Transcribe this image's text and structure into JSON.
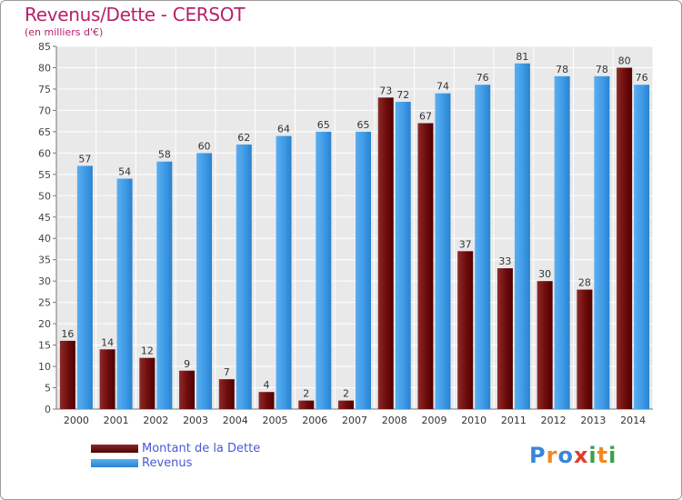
{
  "title": "Revenus/Dette - CERSOT",
  "subtitle": "(en milliers d'€)",
  "logo": {
    "letters": [
      "P",
      "r",
      "o",
      "x",
      "i",
      "t",
      "i"
    ],
    "colors": [
      "#3a86d8",
      "#f08a1c",
      "#3a86d8",
      "#e23b2e",
      "#3aa04a",
      "#f08a1c",
      "#3aa04a"
    ]
  },
  "colors": {
    "dette": "#7a1010",
    "revenus": "#3e9ae6",
    "title": "#b8206a",
    "legend_text": "#4a58d6"
  },
  "chart_data": {
    "type": "bar",
    "title": "Revenus/Dette - CERSOT",
    "ylabel": "(en milliers d'€)",
    "xlabel": "",
    "ylim": [
      0,
      85
    ],
    "yticks": [
      0,
      5,
      10,
      15,
      20,
      25,
      30,
      35,
      40,
      45,
      50,
      55,
      60,
      65,
      70,
      75,
      80,
      85
    ],
    "grid": true,
    "legend_position": "bottom-left",
    "categories": [
      "2000",
      "2001",
      "2002",
      "2003",
      "2004",
      "2005",
      "2006",
      "2007",
      "2008",
      "2009",
      "2010",
      "2011",
      "2012",
      "2013",
      "2014"
    ],
    "series": [
      {
        "name": "Montant de la Dette",
        "values": [
          16,
          14,
          12,
          9,
          7,
          4,
          2,
          2,
          73,
          67,
          37,
          33,
          30,
          28,
          80
        ]
      },
      {
        "name": "Revenus",
        "values": [
          57,
          54,
          58,
          60,
          62,
          64,
          65,
          65,
          72,
          74,
          76,
          81,
          78,
          78,
          76
        ]
      }
    ]
  }
}
